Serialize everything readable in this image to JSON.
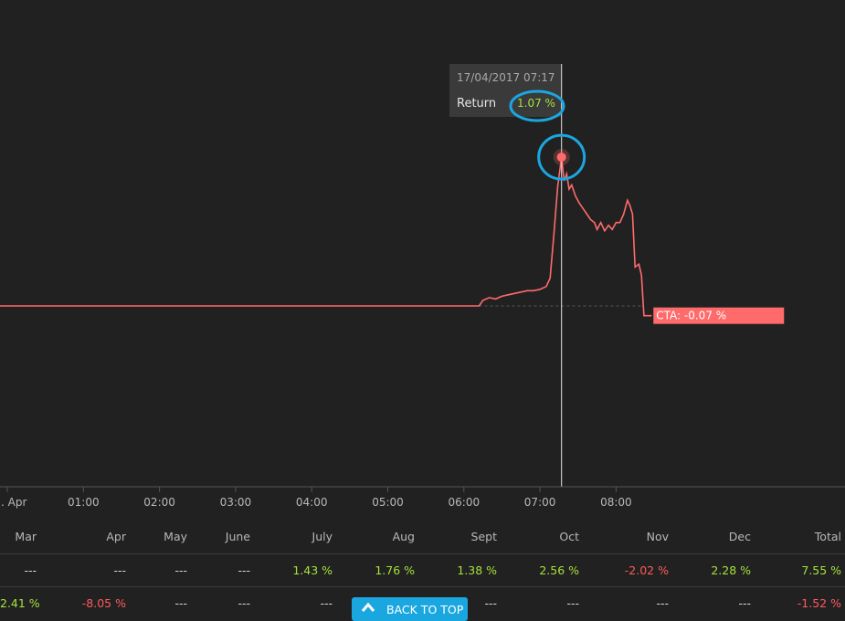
{
  "chart_data": {
    "type": "line",
    "x_ticks": [
      ". Apr",
      "01:00",
      "02:00",
      "03:00",
      "04:00",
      "05:00",
      "06:00",
      "07:00",
      "08:00"
    ],
    "series": [
      {
        "name": "CTA",
        "color": "#ff6b6b",
        "points": [
          [
            "00:00",
            0.0
          ],
          [
            "06:12",
            0.0
          ],
          [
            "06:15",
            0.04
          ],
          [
            "06:20",
            0.06
          ],
          [
            "06:25",
            0.05
          ],
          [
            "06:30",
            0.07
          ],
          [
            "06:35",
            0.08
          ],
          [
            "06:40",
            0.09
          ],
          [
            "06:45",
            0.1
          ],
          [
            "06:50",
            0.11
          ],
          [
            "06:55",
            0.11
          ],
          [
            "07:00",
            0.12
          ],
          [
            "07:05",
            0.14
          ],
          [
            "07:08",
            0.2
          ],
          [
            "07:11",
            0.52
          ],
          [
            "07:14",
            0.86
          ],
          [
            "07:17",
            1.07
          ],
          [
            "07:19",
            0.9
          ],
          [
            "07:21",
            0.95
          ],
          [
            "07:23",
            0.84
          ],
          [
            "07:25",
            0.87
          ],
          [
            "07:28",
            0.79
          ],
          [
            "07:31",
            0.74
          ],
          [
            "07:34",
            0.7
          ],
          [
            "07:37",
            0.66
          ],
          [
            "07:40",
            0.62
          ],
          [
            "07:43",
            0.6
          ],
          [
            "07:45",
            0.55
          ],
          [
            "07:48",
            0.6
          ],
          [
            "07:51",
            0.54
          ],
          [
            "07:54",
            0.58
          ],
          [
            "07:57",
            0.55
          ],
          [
            "08:00",
            0.6
          ],
          [
            "08:03",
            0.6
          ],
          [
            "08:06",
            0.66
          ],
          [
            "08:09",
            0.76
          ],
          [
            "08:11",
            0.72
          ],
          [
            "08:13",
            0.66
          ],
          [
            "08:15",
            0.28
          ],
          [
            "08:18",
            0.3
          ],
          [
            "08:20",
            0.22
          ],
          [
            "08:22",
            -0.07
          ],
          [
            "08:28",
            -0.07
          ]
        ]
      }
    ],
    "x_range": [
      "00:00",
      "09:00"
    ],
    "ylim": [
      -1.3,
      2.2
    ],
    "baseline": 0.0,
    "crosshair_x": "07:17",
    "highlight_point": [
      "07:17",
      1.07
    ],
    "end_label": "CTA: -0.07 %",
    "tooltip": {
      "timestamp": "17/04/2017 07:17",
      "label": "Return",
      "value": "1.07 %"
    },
    "annotations": [
      "circle around tooltip value",
      "circle around peak point"
    ]
  },
  "table": {
    "headers": [
      "Mar",
      "Apr",
      "May",
      "June",
      "July",
      "Aug",
      "Sept",
      "Oct",
      "Nov",
      "Dec",
      "Total"
    ],
    "rows": [
      [
        "---",
        "---",
        "---",
        "---",
        "1.43 %",
        "1.76 %",
        "1.38 %",
        "2.56 %",
        "-2.02 %",
        "2.28 %",
        "7.55 %"
      ],
      [
        "2.41 %",
        "-8.05 %",
        "---",
        "---",
        "---",
        "",
        "---",
        "---",
        "---",
        "---",
        "-1.52 %"
      ]
    ]
  },
  "back_to_top": {
    "label": "BACK TO TOP"
  },
  "colors": {
    "background": "#222122",
    "line": "#ff6b6b",
    "positive": "#a5e33a",
    "negative": "#ff5a5a",
    "highlight_circle": "#1aa7e0",
    "button": "#1aa7e0"
  }
}
